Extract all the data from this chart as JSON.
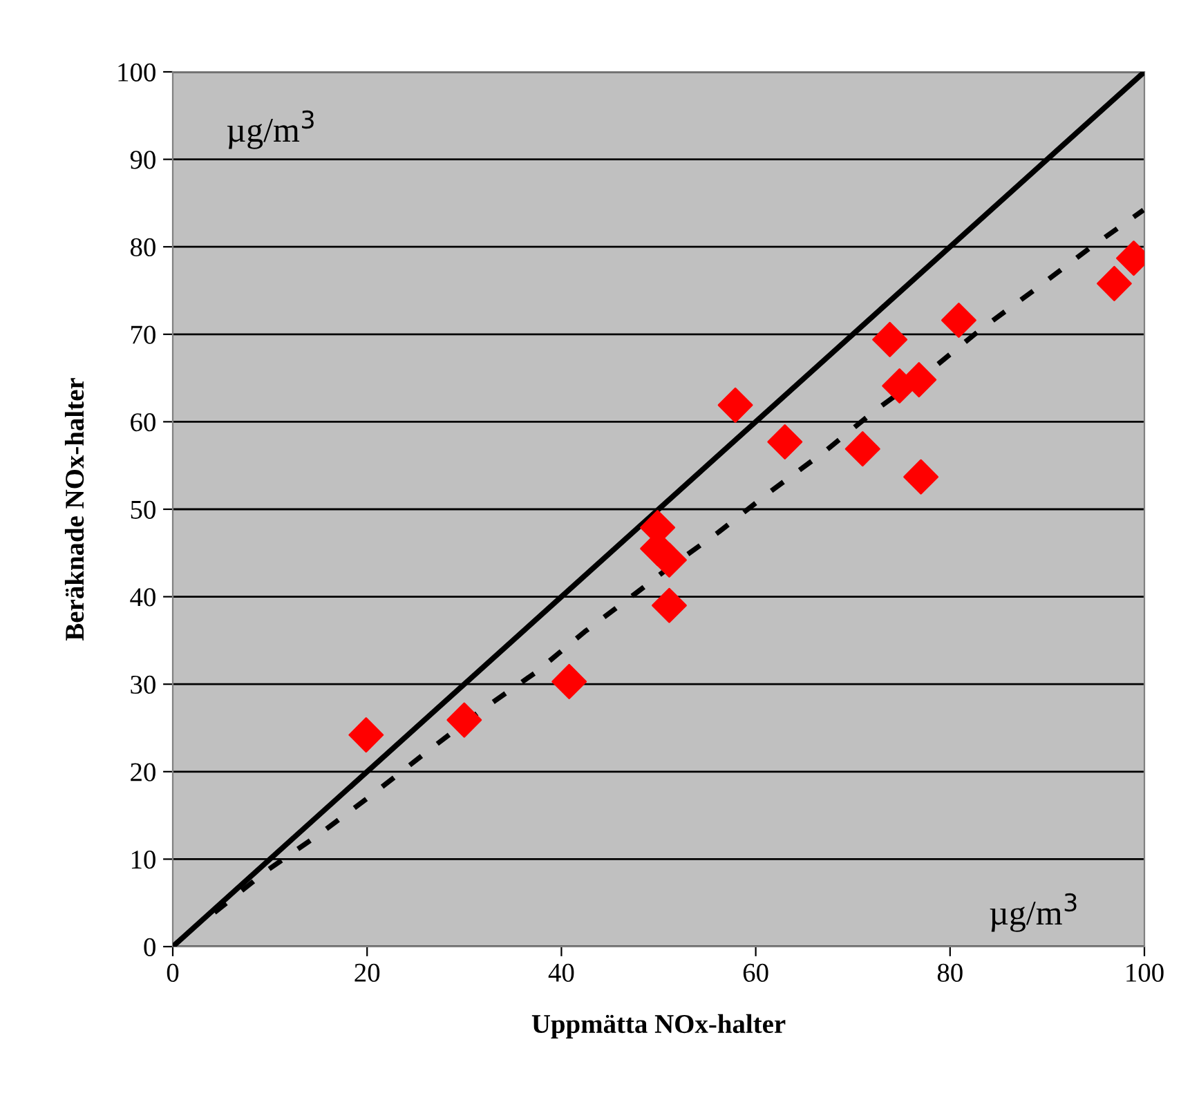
{
  "chart_data": {
    "type": "scatter",
    "xlabel": "Uppmätta NOx-halter",
    "ylabel": "Beräknade NOx-halter",
    "annotations": [
      "µg/m$^{3}$",
      "µg/m$^{3}$"
    ],
    "xlim": [
      0,
      100
    ],
    "ylim": [
      0,
      100
    ],
    "xticks": [
      0,
      20,
      40,
      60,
      80,
      100
    ],
    "yticks": [
      0,
      10,
      20,
      30,
      40,
      50,
      60,
      70,
      80,
      90,
      100
    ],
    "grid": "y",
    "legend": false,
    "series": [
      {
        "marker": "diamond",
        "color": "#ff0000",
        "x": [
          19.9,
          30.0,
          40.8,
          49.9,
          49.9,
          51.1,
          51.1,
          57.9,
          63.0,
          71.0,
          73.8,
          74.8,
          76.8,
          77.0,
          80.9,
          96.9,
          98.9
        ],
        "values": [
          24.2,
          25.9,
          30.3,
          47.9,
          45.5,
          44.2,
          39.0,
          61.9,
          57.7,
          56.9,
          69.4,
          64.1,
          64.8,
          53.7,
          71.6,
          75.8,
          78.7
        ]
      },
      {
        "type": "line",
        "marker": "none",
        "line_style": "solid",
        "color": "#000000",
        "x": [
          0,
          100
        ],
        "values": [
          0,
          100
        ]
      },
      {
        "type": "line",
        "marker": "none",
        "line_style": "dashed",
        "color": "#000000",
        "x": [
          4.3,
          9.7,
          15.4,
          20.9,
          26.3,
          31.6,
          37.3,
          42.4,
          47.9,
          50.8,
          56.2,
          61.6,
          67.1,
          72.3,
          78.0,
          83.2,
          88.6,
          94.3,
          99.9
        ],
        "values": [
          3.9,
          8.7,
          13.1,
          17.7,
          22.4,
          26.9,
          31.3,
          36.0,
          40.6,
          43.1,
          47.4,
          52.1,
          56.6,
          61.3,
          65.9,
          70.6,
          75.0,
          79.8,
          84.2
        ]
      }
    ]
  }
}
